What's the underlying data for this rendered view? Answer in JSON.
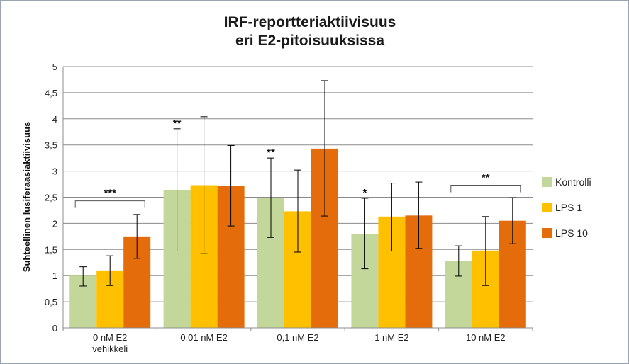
{
  "chart_data": {
    "type": "bar",
    "title_lines": [
      "IRF-reportteriaktiivisuus",
      "eri E2-pitoisuuksissa"
    ],
    "ylabel": "Suhteellinen lusiferaasiaktiivisuus",
    "xlabel": "",
    "ylim": [
      0,
      5
    ],
    "ytick_labels": [
      "0",
      "0,5",
      "1",
      "1,5",
      "2",
      "2,5",
      "3",
      "3,5",
      "4",
      "4,5",
      "5"
    ],
    "grid": true,
    "legend_position": "right",
    "categories": [
      [
        "0 nM E2",
        "vehikkeli"
      ],
      [
        "0,01 nM E2"
      ],
      [
        "0,1 nM E2"
      ],
      [
        "1 nM E2"
      ],
      [
        "10 nM  E2"
      ]
    ],
    "series": [
      {
        "name": "Kontrolli",
        "color": "#c4d79b",
        "values": [
          1.0,
          2.64,
          2.49,
          1.8,
          1.28
        ],
        "err_low": [
          0.8,
          1.47,
          1.73,
          1.13,
          0.99
        ],
        "err_high": [
          1.17,
          3.81,
          3.25,
          2.48,
          1.57
        ]
      },
      {
        "name": "LPS 1",
        "color": "#ffc000",
        "values": [
          1.1,
          2.73,
          2.23,
          2.13,
          1.48
        ],
        "err_low": [
          0.81,
          1.42,
          1.45,
          1.47,
          0.81
        ],
        "err_high": [
          1.38,
          4.04,
          3.02,
          2.77,
          2.13
        ]
      },
      {
        "name": "LPS 10",
        "color": "#e46c0a",
        "values": [
          1.75,
          2.72,
          3.43,
          2.15,
          2.05
        ],
        "err_low": [
          1.33,
          1.95,
          2.14,
          1.52,
          1.61
        ],
        "err_high": [
          2.17,
          3.49,
          4.73,
          2.79,
          2.49
        ]
      }
    ],
    "annotations": [
      {
        "text": "***",
        "category": 0,
        "type": "bracket",
        "level": 2.43
      },
      {
        "text": "**",
        "category": 1,
        "series": 0,
        "type": "star"
      },
      {
        "text": "**",
        "category": 2,
        "series": 0,
        "type": "star"
      },
      {
        "text": "*",
        "category": 3,
        "series": 0,
        "type": "star"
      },
      {
        "text": "**",
        "category": 4,
        "type": "bracket",
        "level": 2.73
      }
    ]
  }
}
